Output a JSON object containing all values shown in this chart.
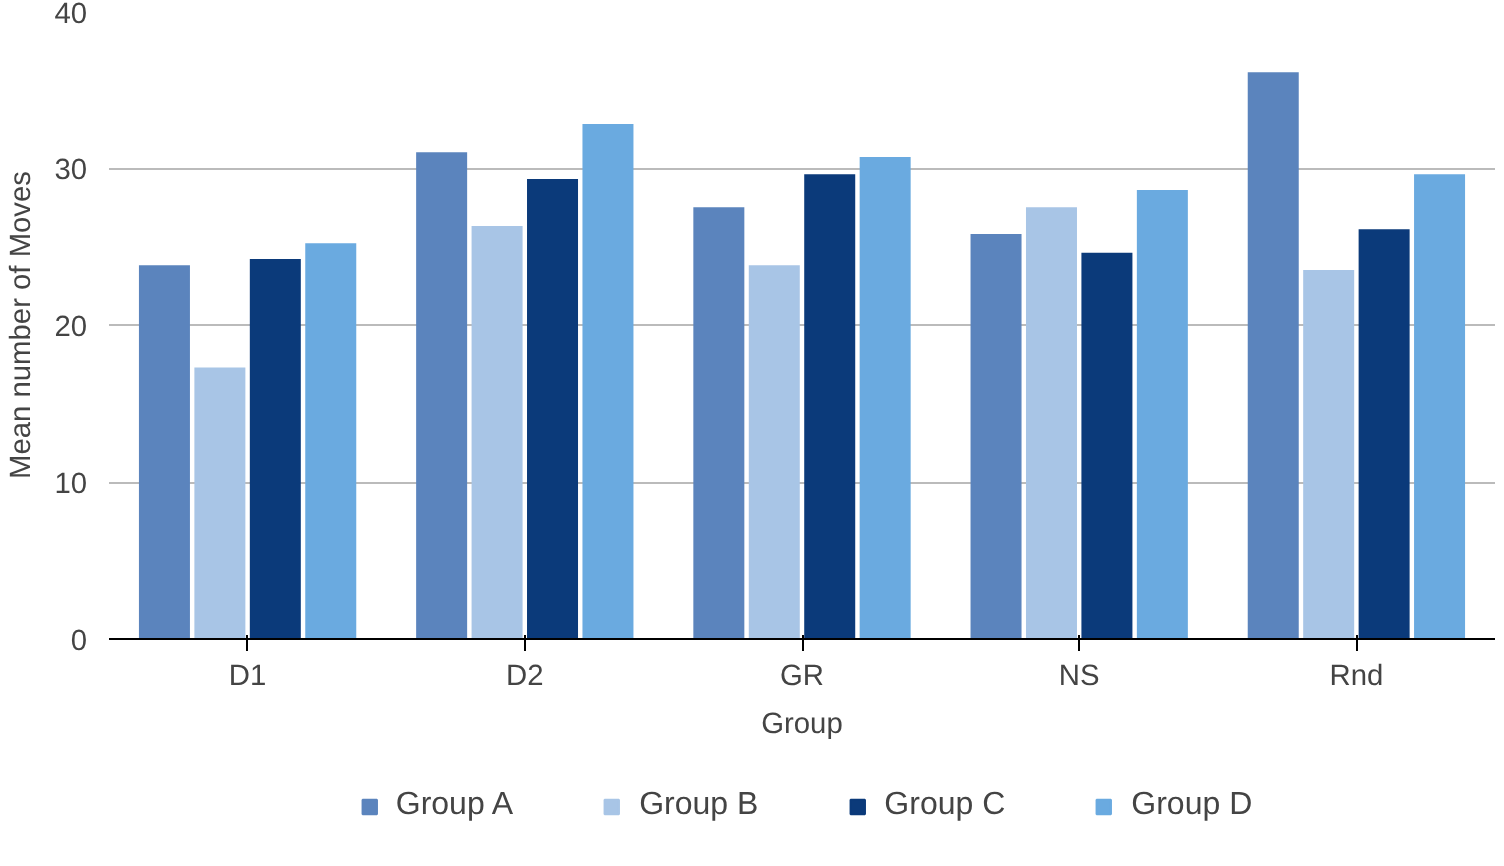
{
  "chart_data": {
    "type": "bar",
    "xlabel": "Group",
    "ylabel": "Mean number of Moves",
    "categories": [
      "D1",
      "D2",
      "GR",
      "NS",
      "Rnd"
    ],
    "series": [
      {
        "name": "Group A",
        "color": "#5b84bd",
        "values": [
          23.8,
          31.0,
          27.5,
          25.8,
          36.1
        ]
      },
      {
        "name": "Group B",
        "color": "#a8c5e6",
        "values": [
          17.3,
          26.3,
          23.8,
          27.5,
          23.5
        ]
      },
      {
        "name": "Group C",
        "color": "#0b3a7a",
        "values": [
          24.2,
          29.3,
          29.6,
          24.6,
          26.1
        ]
      },
      {
        "name": "Group D",
        "color": "#6aaae0",
        "values": [
          25.2,
          32.8,
          30.7,
          28.6,
          29.6
        ]
      }
    ],
    "ylim": [
      0,
      40
    ],
    "yticks": [
      0,
      10,
      20,
      30,
      40
    ],
    "grid": "y",
    "legend": "bottom"
  }
}
